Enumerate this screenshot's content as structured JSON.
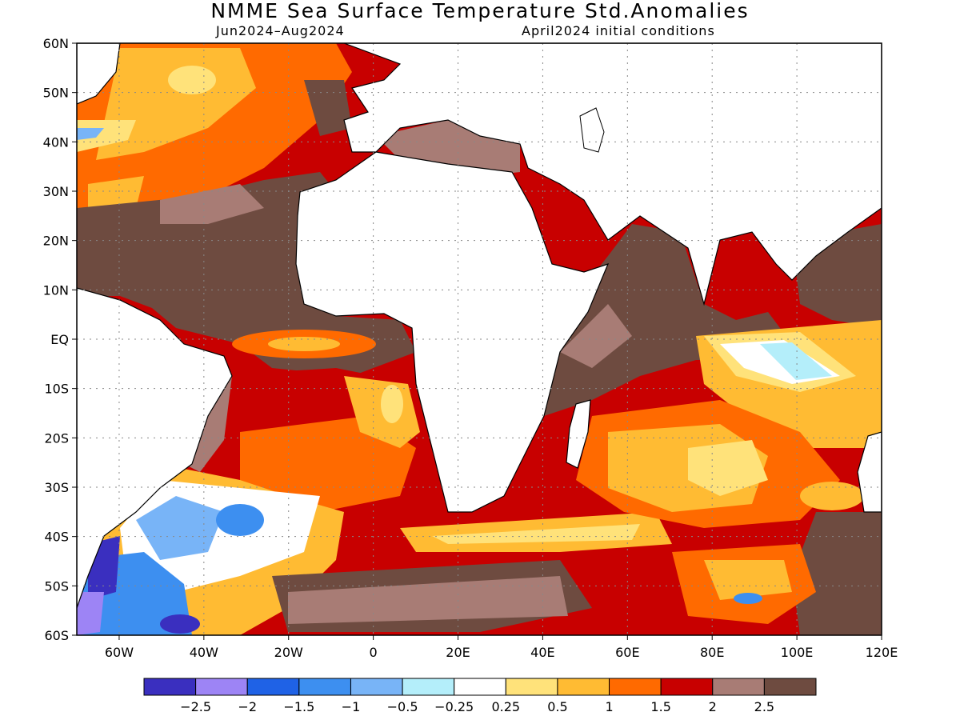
{
  "title": "NMME Sea Surface Temperature Std.Anomalies",
  "subtitle_left": "Jun2024–Aug2024",
  "subtitle_right": "April2024 initial conditions",
  "lat_labels": [
    "60N",
    "50N",
    "40N",
    "30N",
    "20N",
    "10N",
    "EQ",
    "10S",
    "20S",
    "30S",
    "40S",
    "50S",
    "60S"
  ],
  "lon_labels": [
    "60W",
    "40W",
    "20W",
    "0",
    "20E",
    "40E",
    "60E",
    "80E",
    "100E",
    "120E"
  ],
  "colorbar": {
    "colors": [
      "#3a2fbf",
      "#9d84f5",
      "#1f62e6",
      "#3d8ff0",
      "#78b4f7",
      "#b4eefa",
      "#ffffff",
      "#ffe27a",
      "#ffbb33",
      "#ff6a00",
      "#c80000",
      "#a87c75",
      "#6e4b40"
    ],
    "tick_labels": [
      "-2.5",
      "-2",
      "-1.5",
      "-1",
      "-0.5",
      "-0.25",
      "0.25",
      "0.5",
      "1",
      "1.5",
      "2",
      "2.5"
    ]
  }
}
